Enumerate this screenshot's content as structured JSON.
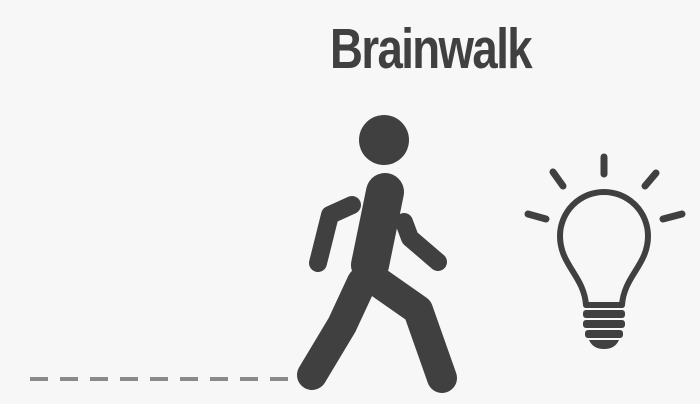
{
  "title": "Brainwalk",
  "icons": {
    "walker": "walking-person-icon",
    "bulb": "lightbulb-idea-icon",
    "path": "dashed-path-line"
  },
  "colors": {
    "background": "#f7f7f7",
    "ink": "#404040",
    "path": "#8a8a8a"
  }
}
